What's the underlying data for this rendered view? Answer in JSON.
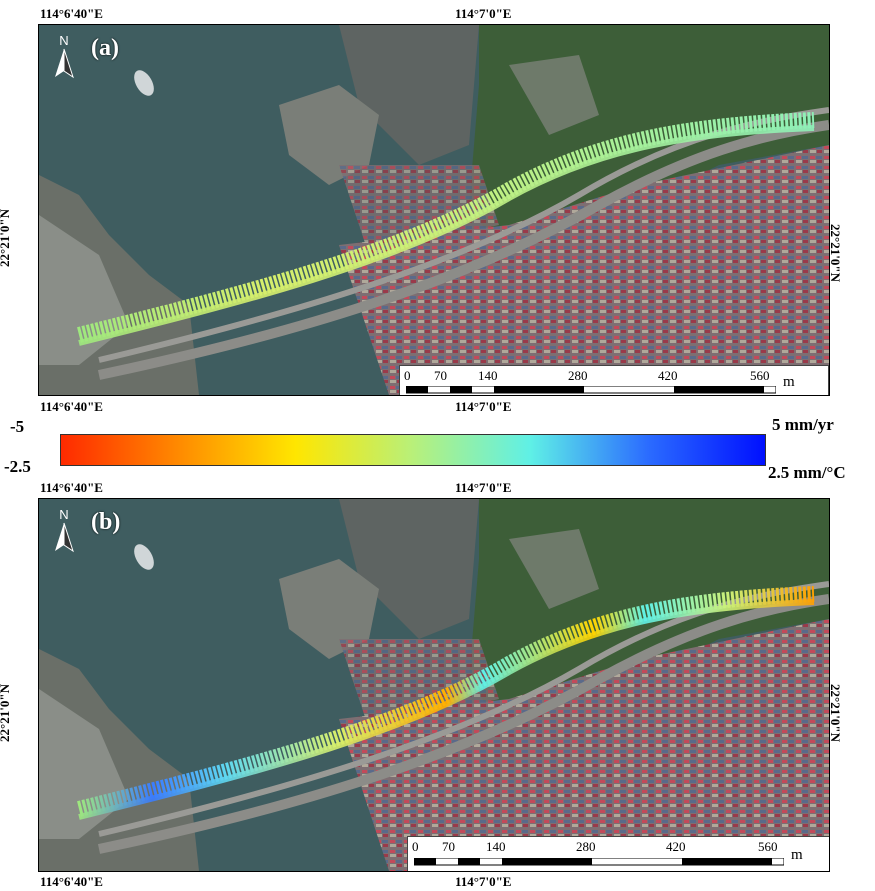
{
  "panels": [
    {
      "label": "(a)",
      "top_coords": [
        "114°6'40\"E",
        "114°7'0\"E"
      ],
      "bottom_coords": [
        "114°6'40\"E",
        "114°7'0\"E"
      ],
      "left_coord": "22°21'0\"N",
      "right_coord": "22°21'0\"N",
      "north_label": "N",
      "scale_ticks": [
        "0",
        "70",
        "140",
        "280",
        "420",
        "560"
      ],
      "scale_unit": "m"
    },
    {
      "label": "(b)",
      "top_coords": [
        "114°6'40\"E",
        "114°7'0\"E"
      ],
      "bottom_coords": [
        "114°6'40\"E",
        "114°7'0\"E"
      ],
      "left_coord": "22°21'0\"N",
      "right_coord": "22°21'0\"N",
      "north_label": "N",
      "scale_ticks": [
        "0",
        "70",
        "140",
        "280",
        "420",
        "560"
      ],
      "scale_unit": "m"
    }
  ],
  "colorbar": {
    "left_top": "-5",
    "left_bottom": "-2.5",
    "right_top": "5 mm/yr",
    "right_bottom": "2.5 mm/°C",
    "colors": [
      "#ff2a00",
      "#ff8a00",
      "#ffe600",
      "#b8f07a",
      "#5ff0e6",
      "#2b6cff",
      "#0010ff"
    ]
  },
  "map_colors": {
    "water": "#3c5a5c",
    "land": "#5b6a5a",
    "vegetation": "#3a5a35",
    "port": "#8a6a6a"
  }
}
